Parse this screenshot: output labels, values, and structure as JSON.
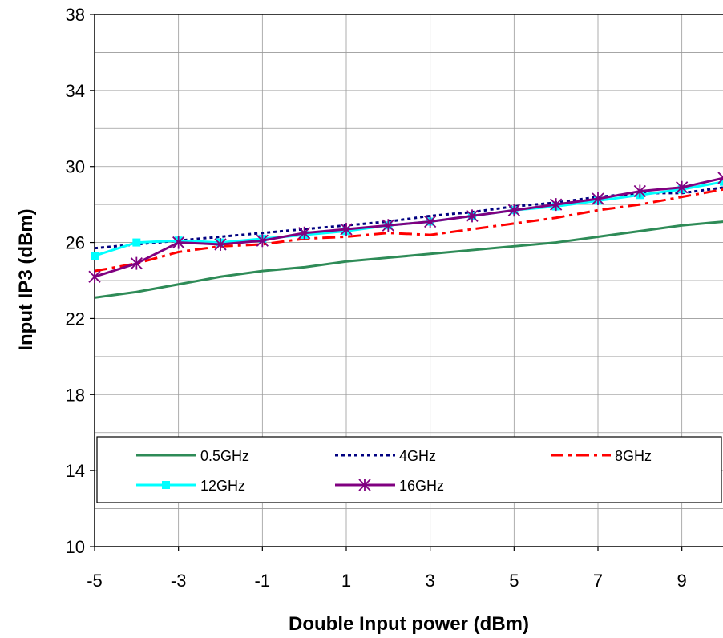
{
  "chart_data": {
    "type": "line",
    "xlabel": "Double Input power (dBm)",
    "ylabel": "Input IP3 (dBm)",
    "xlim": [
      -5,
      10
    ],
    "ylim": [
      10,
      38
    ],
    "xticks": [
      "-5",
      "-3",
      "-1",
      "1",
      "3",
      "5",
      "7",
      "9"
    ],
    "yticks": [
      "10",
      "14",
      "18",
      "22",
      "26",
      "30",
      "34",
      "38"
    ],
    "grid": true,
    "legend_position": "bottom-center inside plot",
    "x": [
      -5,
      -4,
      -3,
      -2,
      -1,
      0,
      1,
      2,
      3,
      4,
      5,
      6,
      7,
      8,
      9,
      10
    ],
    "series": [
      {
        "name": "0.5GHz",
        "color": "#2e8b57",
        "style": "solid",
        "marker": "none",
        "values": [
          23.1,
          23.4,
          23.8,
          24.2,
          24.5,
          24.7,
          25.0,
          25.2,
          25.4,
          25.6,
          25.8,
          26.0,
          26.3,
          26.6,
          26.9,
          27.1
        ]
      },
      {
        "name": "4GHz",
        "color": "#000080",
        "style": "dotted",
        "marker": "none",
        "values": [
          25.7,
          25.9,
          26.1,
          26.3,
          26.5,
          26.7,
          26.9,
          27.1,
          27.4,
          27.6,
          27.9,
          28.1,
          28.4,
          28.6,
          28.6,
          28.9
        ]
      },
      {
        "name": "8GHz",
        "color": "#ff0000",
        "style": "dashdot",
        "marker": "none",
        "values": [
          24.5,
          24.9,
          25.5,
          25.8,
          25.9,
          26.2,
          26.3,
          26.5,
          26.4,
          26.7,
          27.0,
          27.3,
          27.7,
          28.0,
          28.4,
          28.8
        ]
      },
      {
        "name": "12GHz",
        "color": "#00ffff",
        "style": "solid",
        "marker": "square",
        "values": [
          25.3,
          26.0,
          26.1,
          26.0,
          26.2,
          26.4,
          26.6,
          26.9,
          27.1,
          27.4,
          27.7,
          27.9,
          28.2,
          28.5,
          28.8,
          29.2
        ]
      },
      {
        "name": "16GHz",
        "color": "#800080",
        "style": "solid",
        "marker": "star",
        "values": [
          24.2,
          24.9,
          26.0,
          25.9,
          26.1,
          26.5,
          26.7,
          26.9,
          27.1,
          27.4,
          27.7,
          28.0,
          28.3,
          28.7,
          28.9,
          29.4
        ]
      }
    ]
  }
}
